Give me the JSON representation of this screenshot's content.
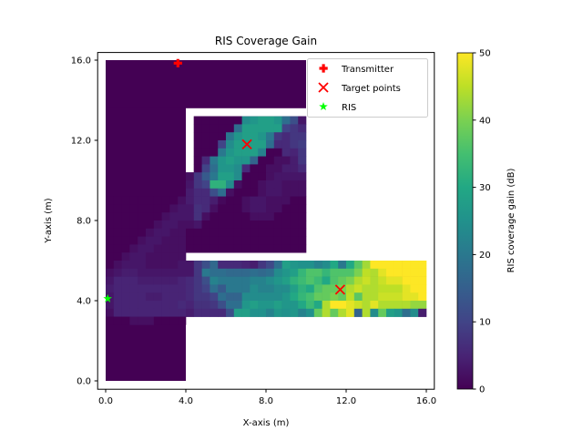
{
  "chart_data": {
    "type": "heatmap",
    "title": "RIS Coverage Gain",
    "xlabel": "X-axis (m)",
    "ylabel": "Y-axis (m)",
    "xlim": [
      -0.4,
      16.4
    ],
    "ylim": [
      -0.4,
      16.4
    ],
    "xticks": [
      "0.0",
      "4.0",
      "8.0",
      "12.0",
      "16.0"
    ],
    "yticks": [
      "0.0",
      "4.0",
      "8.0",
      "12.0",
      "16.0"
    ],
    "xtick_values": [
      0,
      4,
      8,
      12,
      16
    ],
    "ytick_values": [
      0,
      4,
      8,
      12,
      16
    ],
    "grid": false,
    "colormap": "viridis",
    "colorbar": {
      "label": "RIS coverage gain (dB)",
      "range": [
        0,
        50
      ],
      "ticks": [
        "0",
        "10",
        "20",
        "30",
        "40",
        "50"
      ],
      "tick_values": [
        0,
        10,
        20,
        30,
        40,
        50
      ]
    },
    "cell_size": 0.4,
    "zero_regions": [
      {
        "x": [
          0,
          4
        ],
        "y": [
          0,
          16
        ]
      },
      {
        "x": [
          0,
          10
        ],
        "y": [
          13.6,
          16
        ]
      },
      {
        "x": [
          4.4,
          10
        ],
        "y": [
          6.4,
          13.2
        ]
      },
      {
        "x": [
          4,
          4.4
        ],
        "y": [
          6.4,
          10.4
        ]
      },
      {
        "x": [
          4,
          16
        ],
        "y": [
          3.2,
          6.0
        ]
      }
    ],
    "blocks": [
      {
        "x_start": 0,
        "y_top": 9.2,
        "rows": [
          [
            0,
            0,
            0,
            0,
            0,
            0,
            0,
            0,
            0,
            2
          ],
          [
            0,
            0,
            0,
            0,
            0,
            0,
            0,
            0,
            2,
            3
          ],
          [
            0,
            0,
            0,
            0,
            0,
            0,
            0,
            2,
            3,
            3
          ],
          [
            0,
            0,
            0,
            0,
            0,
            0,
            2,
            3,
            3,
            2
          ],
          [
            0,
            0,
            0,
            0,
            0,
            2,
            3,
            3,
            2,
            2
          ],
          [
            0,
            0,
            0,
            0,
            2,
            3,
            3,
            2,
            2,
            2
          ],
          [
            0,
            0,
            0,
            2,
            3,
            3,
            2,
            2,
            2,
            2
          ],
          [
            0,
            0,
            2,
            3,
            3,
            2,
            2,
            2,
            2,
            2
          ],
          [
            0,
            2,
            3,
            3,
            3,
            2,
            2,
            2,
            2,
            3
          ],
          [
            2,
            3,
            4,
            4,
            3,
            3,
            3,
            3,
            3,
            3
          ],
          [
            3,
            5,
            5,
            5,
            4,
            4,
            4,
            4,
            4,
            5
          ],
          [
            4,
            5,
            5,
            5,
            5,
            5,
            5,
            5,
            5,
            5
          ],
          [
            3,
            5,
            5,
            5,
            5,
            4,
            4,
            5,
            5,
            5
          ],
          [
            3,
            5,
            5,
            5,
            5,
            5,
            5,
            5,
            5,
            6
          ],
          [
            2,
            5,
            5,
            5,
            5,
            5,
            5,
            5,
            5,
            5
          ],
          [
            0,
            0,
            0,
            2,
            2,
            2,
            0,
            0,
            0,
            0
          ]
        ]
      },
      {
        "x_start": 4,
        "y_top": 13.2,
        "rows": [
          [
            null,
            0,
            0,
            0,
            0,
            0,
            0,
            24,
            26,
            28,
            28,
            26,
            18,
            12,
            3
          ],
          [
            null,
            0,
            0,
            0,
            0,
            0,
            18,
            28,
            28,
            28,
            28,
            28,
            10,
            8,
            6
          ],
          [
            null,
            0,
            0,
            0,
            0,
            20,
            26,
            28,
            28,
            26,
            20,
            8,
            6,
            8,
            8
          ],
          [
            null,
            0,
            0,
            0,
            10,
            24,
            28,
            28,
            28,
            28,
            18,
            6,
            6,
            8,
            9
          ],
          [
            null,
            0,
            0,
            0,
            20,
            26,
            28,
            28,
            28,
            22,
            0,
            0,
            6,
            5,
            8
          ],
          [
            null,
            0,
            6,
            20,
            26,
            28,
            26,
            26,
            16,
            0,
            0,
            2,
            2,
            4,
            8
          ],
          [
            null,
            0,
            10,
            18,
            26,
            26,
            24,
            6,
            0,
            0,
            2,
            2,
            4,
            4,
            6
          ],
          [
            2,
            8,
            14,
            20,
            28,
            28,
            24,
            0,
            0,
            0,
            2,
            3,
            3,
            3,
            3
          ],
          [
            3,
            8,
            10,
            32,
            32,
            24,
            2,
            0,
            0,
            2,
            3,
            3,
            2,
            2,
            2
          ],
          [
            4,
            6,
            6,
            12,
            18,
            2,
            0,
            0,
            0,
            2,
            3,
            3,
            2,
            2,
            2
          ],
          [
            4,
            6,
            6,
            4,
            1,
            0,
            0,
            2,
            3,
            3,
            2,
            2,
            2,
            0,
            0
          ],
          [
            3,
            7,
            6,
            2,
            0,
            0,
            0,
            2,
            3,
            3,
            2,
            2,
            0,
            0,
            0
          ],
          [
            3,
            7,
            2,
            0,
            0,
            0,
            0,
            0,
            2,
            2,
            2,
            0,
            0,
            0,
            0
          ],
          [
            2,
            3,
            0,
            0,
            0,
            0,
            0,
            0,
            0,
            0,
            0,
            0,
            0,
            0,
            0
          ],
          [
            0,
            0,
            0,
            0,
            0,
            0,
            0,
            0,
            0,
            0,
            0,
            0,
            0,
            0,
            0
          ],
          [
            0,
            0,
            0,
            0,
            0,
            0,
            0,
            0,
            0,
            0,
            0,
            0,
            0,
            0,
            0
          ],
          [
            0,
            0,
            0,
            0,
            0,
            0,
            0,
            0,
            0,
            0,
            0,
            0,
            0,
            0,
            0
          ]
        ]
      },
      {
        "x_start": 4,
        "y_top": 6.0,
        "rows": [
          [
            3,
            8,
            12,
            17,
            6,
            6,
            6,
            5,
            4,
            8,
            11,
            18,
            28,
            26,
            25,
            25,
            22,
            24,
            30,
            20,
            30,
            37,
            43,
            50,
            50,
            50,
            50,
            50,
            50,
            50
          ],
          [
            3,
            8,
            20,
            18,
            18,
            17,
            17,
            17,
            18,
            17,
            18,
            24,
            26,
            28,
            33,
            36,
            36,
            33,
            36,
            36,
            36,
            40,
            45,
            44,
            48,
            50,
            50,
            50,
            50,
            50
          ],
          [
            6,
            8,
            12,
            22,
            20,
            20,
            20,
            20,
            22,
            22,
            24,
            26,
            28,
            32,
            34,
            36,
            34,
            30,
            36,
            38,
            40,
            44,
            46,
            44,
            46,
            48,
            48,
            50,
            50,
            50
          ],
          [
            6,
            8,
            10,
            18,
            14,
            20,
            20,
            20,
            24,
            22,
            22,
            24,
            24,
            28,
            32,
            30,
            36,
            38,
            38,
            40,
            44,
            46,
            44,
            44,
            45,
            45,
            45,
            48,
            50,
            50
          ],
          [
            6,
            8,
            8,
            10,
            18,
            16,
            16,
            24,
            24,
            24,
            24,
            24,
            26,
            30,
            33,
            35,
            38,
            38,
            40,
            38,
            45,
            37,
            44,
            44,
            46,
            46,
            46,
            48,
            48,
            50
          ],
          [
            5,
            7,
            7,
            8,
            12,
            18,
            18,
            26,
            28,
            26,
            26,
            28,
            26,
            26,
            30,
            34,
            30,
            44,
            50,
            50,
            48,
            46,
            44,
            48,
            44,
            44,
            44,
            44,
            42,
            42
          ],
          [
            4,
            6,
            6,
            6,
            6,
            12,
            28,
            28,
            25,
            25,
            22,
            26,
            25,
            26,
            22,
            25,
            38,
            44,
            38,
            44,
            48,
            16,
            44,
            24,
            38,
            28,
            26,
            18,
            24,
            4
          ]
        ]
      }
    ],
    "markers": [
      {
        "name": "Transmitter",
        "symbol": "plus",
        "color": "#ff0000",
        "points": [
          [
            3.6,
            15.85
          ]
        ]
      },
      {
        "name": "Target points",
        "symbol": "x",
        "color": "#ff0000",
        "points": [
          [
            7.05,
            11.8
          ],
          [
            11.7,
            4.55
          ]
        ]
      },
      {
        "name": "RIS",
        "symbol": "star",
        "color": "#00ff00",
        "points": [
          [
            0.1,
            4.1
          ]
        ]
      }
    ],
    "legend": {
      "placement": "top-right",
      "entries": [
        "Transmitter",
        "Target points",
        "RIS"
      ]
    }
  }
}
